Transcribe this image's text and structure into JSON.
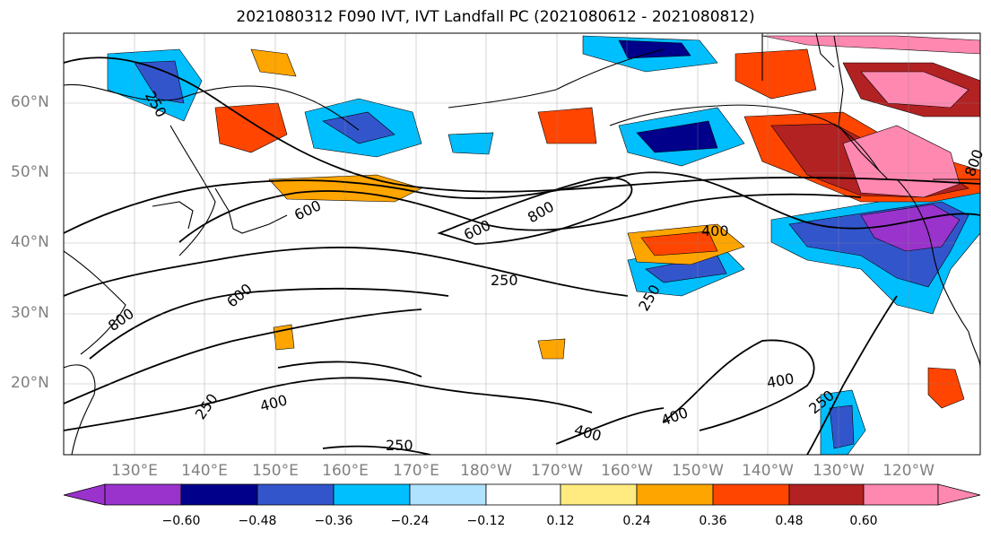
{
  "title": "2021080312 F090 IVT, IVT Landfall PC (2021080612 - 2021080812)",
  "lat_labels": [
    "60°N",
    "50°N",
    "40°N",
    "30°N",
    "20°N"
  ],
  "lon_labels": [
    "130°E",
    "140°E",
    "150°E",
    "160°E",
    "170°E",
    "180°W",
    "170°W",
    "160°W",
    "150°W",
    "140°W",
    "130°W",
    "120°W"
  ],
  "contour_labels": [
    "250",
    "250",
    "250",
    "250",
    "250",
    "250",
    "400",
    "400",
    "400",
    "400",
    "400",
    "600",
    "600",
    "600",
    "800",
    "800",
    "800"
  ],
  "colorbar": {
    "ticks": [
      "−0.60",
      "−0.48",
      "−0.36",
      "−0.24",
      "−0.12",
      "0.12",
      "0.24",
      "0.36",
      "0.48",
      "0.60"
    ],
    "colors": [
      "#9933cc",
      "#00008b",
      "#3355cc",
      "#00bfff",
      "#aee2ff",
      "#ffffff",
      "#ffeb80",
      "#ffa500",
      "#ff4500",
      "#b22222",
      "#ff88b0"
    ]
  }
}
